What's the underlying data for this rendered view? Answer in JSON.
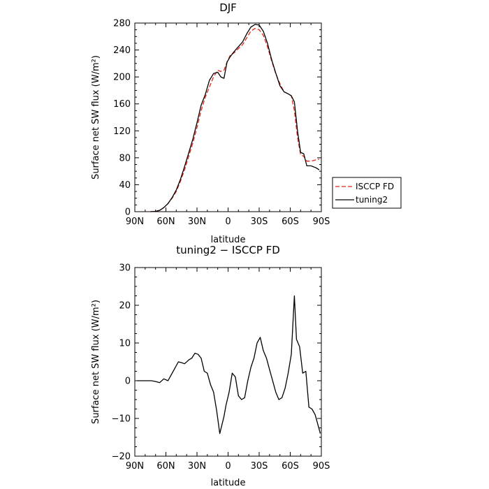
{
  "chart_data": [
    {
      "type": "line",
      "title": "DJF",
      "xlabel": "latitude",
      "ylabel": "Surface net SW flux (W/m²)",
      "xlim": [
        90,
        -90
      ],
      "ylim": [
        0,
        280
      ],
      "xticks": [
        90,
        60,
        30,
        0,
        -30,
        -60,
        -90
      ],
      "xticklabels": [
        "90N",
        "60N",
        "30N",
        "0",
        "30S",
        "60S",
        "90S"
      ],
      "yticks": [
        0,
        40,
        80,
        120,
        160,
        200,
        240,
        280
      ],
      "yticklabels": [
        "0",
        "40",
        "80",
        "120",
        "160",
        "200",
        "240",
        "280"
      ],
      "grid": false,
      "legend": "right",
      "series": [
        {
          "name": "ISCCP FD",
          "color": "#e8231a",
          "dash": "dashed",
          "x": [
            75,
            70,
            66,
            62,
            58,
            54,
            50,
            46,
            42,
            38,
            34,
            30,
            26,
            22,
            18,
            14,
            10,
            7,
            4,
            1,
            -2,
            -6,
            -10,
            -14,
            -18,
            -22,
            -26,
            -30,
            -34,
            -38,
            -42,
            -46,
            -50,
            -54,
            -58,
            -61,
            -64,
            -67,
            -70,
            -73,
            -76,
            -80,
            -85,
            -88
          ],
          "y": [
            0,
            0.5,
            2,
            6,
            12,
            20,
            30,
            45,
            62,
            82,
            102,
            125,
            150,
            170,
            185,
            200,
            210,
            208,
            210,
            222,
            232,
            236,
            242,
            248,
            258,
            268,
            272,
            270,
            262,
            245,
            224,
            205,
            190,
            178,
            175,
            172,
            150,
            110,
            85,
            82,
            75,
            75,
            77,
            78
          ]
        },
        {
          "name": "tuning2",
          "color": "#000000",
          "dash": "solid",
          "x": [
            75,
            70,
            66,
            62,
            58,
            54,
            50,
            46,
            42,
            38,
            34,
            30,
            26,
            22,
            18,
            14,
            10,
            7,
            4,
            1,
            -2,
            -6,
            -10,
            -14,
            -18,
            -22,
            -26,
            -30,
            -34,
            -38,
            -42,
            -46,
            -50,
            -54,
            -58,
            -61,
            -64,
            -67,
            -70,
            -73,
            -76,
            -80,
            -85,
            -88
          ],
          "y": [
            0,
            0.5,
            2,
            6,
            12,
            21,
            32,
            48,
            67,
            87,
            108,
            132,
            158,
            174,
            195,
            205,
            207,
            200,
            198,
            222,
            230,
            238,
            245,
            252,
            264,
            274,
            278,
            277,
            268,
            250,
            226,
            206,
            187,
            178,
            175,
            172,
            163,
            120,
            88,
            86,
            68,
            68,
            65,
            62
          ]
        }
      ]
    },
    {
      "type": "line",
      "title": "tuning2 − ISCCP FD",
      "xlabel": "latitude",
      "ylabel": "Surface net SW flux (W/m²)",
      "xlim": [
        90,
        -90
      ],
      "ylim": [
        -20,
        30
      ],
      "xticks": [
        90,
        60,
        30,
        0,
        -30,
        -60,
        -90
      ],
      "xticklabels": [
        "90N",
        "60N",
        "30N",
        "0",
        "30S",
        "60S",
        "90S"
      ],
      "yticks": [
        -20,
        -10,
        0,
        10,
        20,
        30
      ],
      "yticklabels": [
        "−20",
        "−10",
        "0",
        "10",
        "20",
        "30"
      ],
      "grid": false,
      "series": [
        {
          "color": "#000000",
          "dash": "solid",
          "x": [
            88,
            80,
            74,
            70,
            66,
            62,
            58,
            55,
            52,
            48,
            45,
            42,
            38,
            35,
            32,
            29,
            26,
            23,
            20,
            17,
            14,
            11,
            8,
            4,
            2,
            -1,
            -4,
            -7,
            -10,
            -13,
            -16,
            -19,
            -22,
            -25,
            -28,
            -31,
            -34,
            -37,
            -40,
            -43,
            -46,
            -49,
            -52,
            -55,
            -58,
            -61,
            -64,
            -66,
            -69,
            -72,
            -75,
            -78,
            -81,
            -84,
            -87,
            -89
          ],
          "y": [
            0,
            0,
            0,
            -0.2,
            -0.5,
            0.5,
            0,
            1.5,
            3,
            5,
            4.8,
            4.5,
            5.5,
            6,
            7.3,
            7,
            6,
            2.5,
            2,
            -1,
            -3,
            -8,
            -14,
            -9.5,
            -6.5,
            -3,
            2,
            1,
            -4,
            -5,
            -4.5,
            0,
            3.5,
            6,
            10,
            11.5,
            8,
            6,
            3,
            0,
            -3,
            -5,
            -4.5,
            -2,
            2,
            7,
            22.5,
            11,
            9,
            2,
            2.5,
            -7,
            -7.5,
            -9,
            -12,
            -14
          ]
        }
      ]
    }
  ]
}
